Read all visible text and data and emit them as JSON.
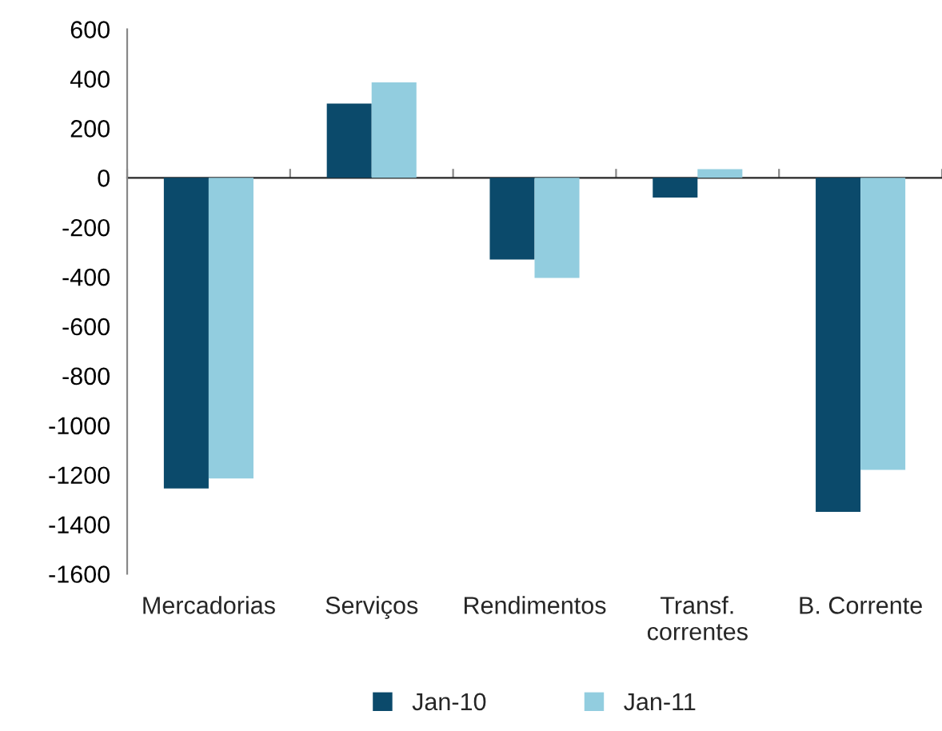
{
  "chart_data": {
    "type": "bar",
    "categories": [
      "Mercadorias",
      "Serviços",
      "Rendimentos",
      "Transf.\ncorrentes",
      "B. Corrente"
    ],
    "series": [
      {
        "name": "Jan-10",
        "color": "#0b4a6b",
        "values": [
          -1255,
          300,
          -330,
          -80,
          -1350
        ]
      },
      {
        "name": "Jan-11",
        "color": "#92cddf",
        "values": [
          -1215,
          385,
          -405,
          35,
          -1180
        ]
      }
    ],
    "ylim": [
      -1600,
      600
    ],
    "yticks": [
      -1600,
      -1400,
      -1200,
      -1000,
      -800,
      -600,
      -400,
      -200,
      0,
      200,
      400,
      600
    ],
    "legend": "bottom"
  }
}
